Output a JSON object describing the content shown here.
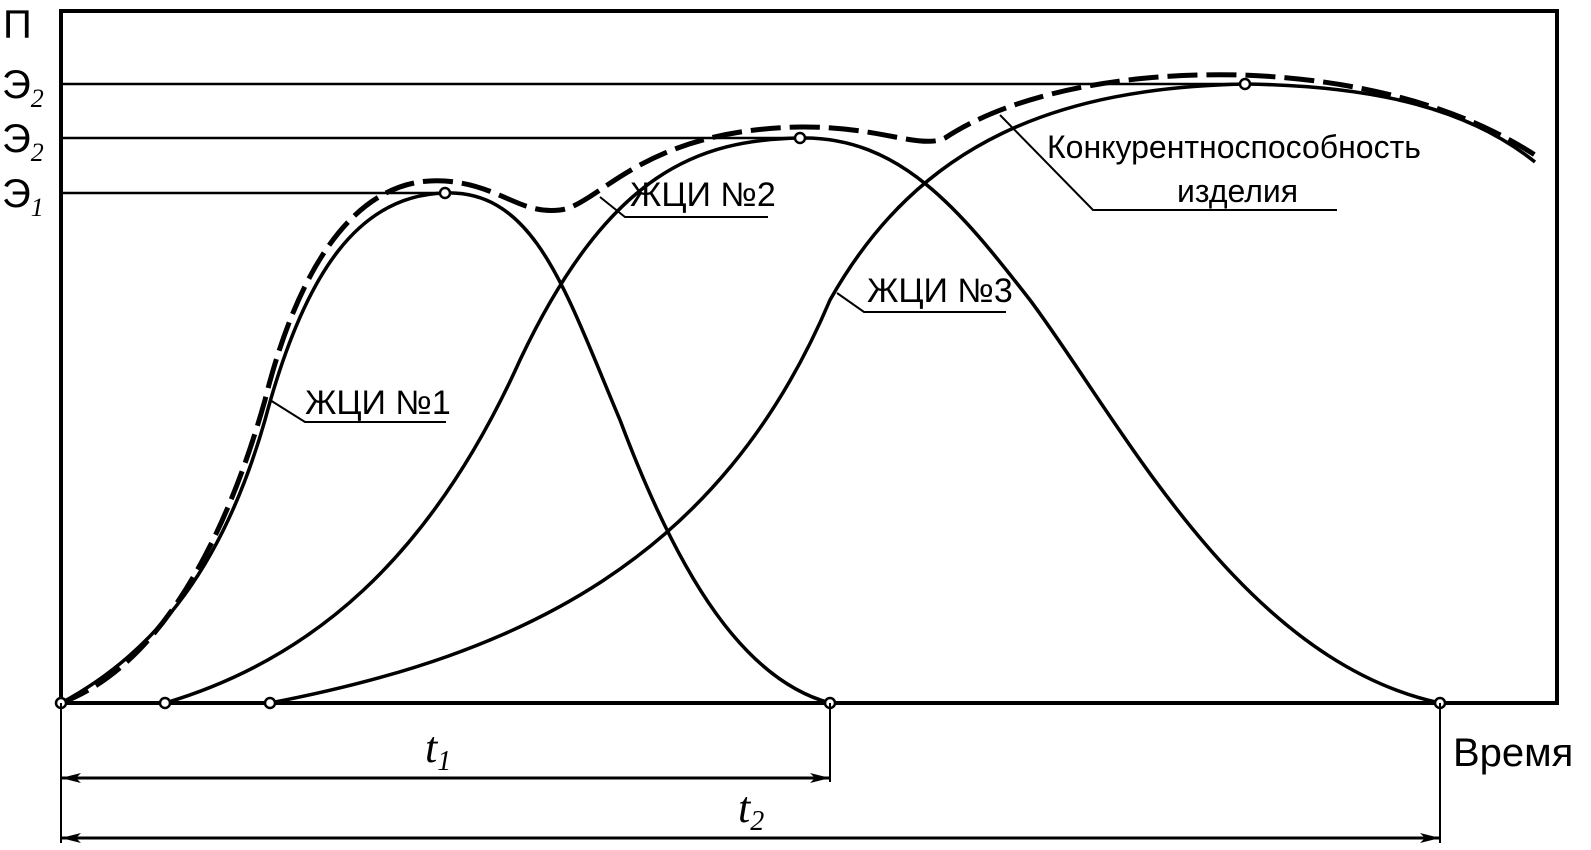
{
  "axes": {
    "y_label": "П",
    "x_label": "Время",
    "y_ticks": [
      {
        "base": "Э",
        "sub": "2"
      },
      {
        "base": "Э",
        "sub": "2"
      },
      {
        "base": "Э",
        "sub": "1"
      }
    ]
  },
  "curves": [
    {
      "label": "ЖЦИ №1"
    },
    {
      "label": "ЖЦИ №2"
    },
    {
      "label": "ЖЦИ №3"
    }
  ],
  "envelope": {
    "label_line1": "Конкурентноспособность",
    "label_line2": "изделия"
  },
  "intervals": [
    {
      "base": "t",
      "sub": "1"
    },
    {
      "base": "t",
      "sub": "2"
    }
  ],
  "colors": {
    "ink": "#000000",
    "background": "#ffffff"
  }
}
